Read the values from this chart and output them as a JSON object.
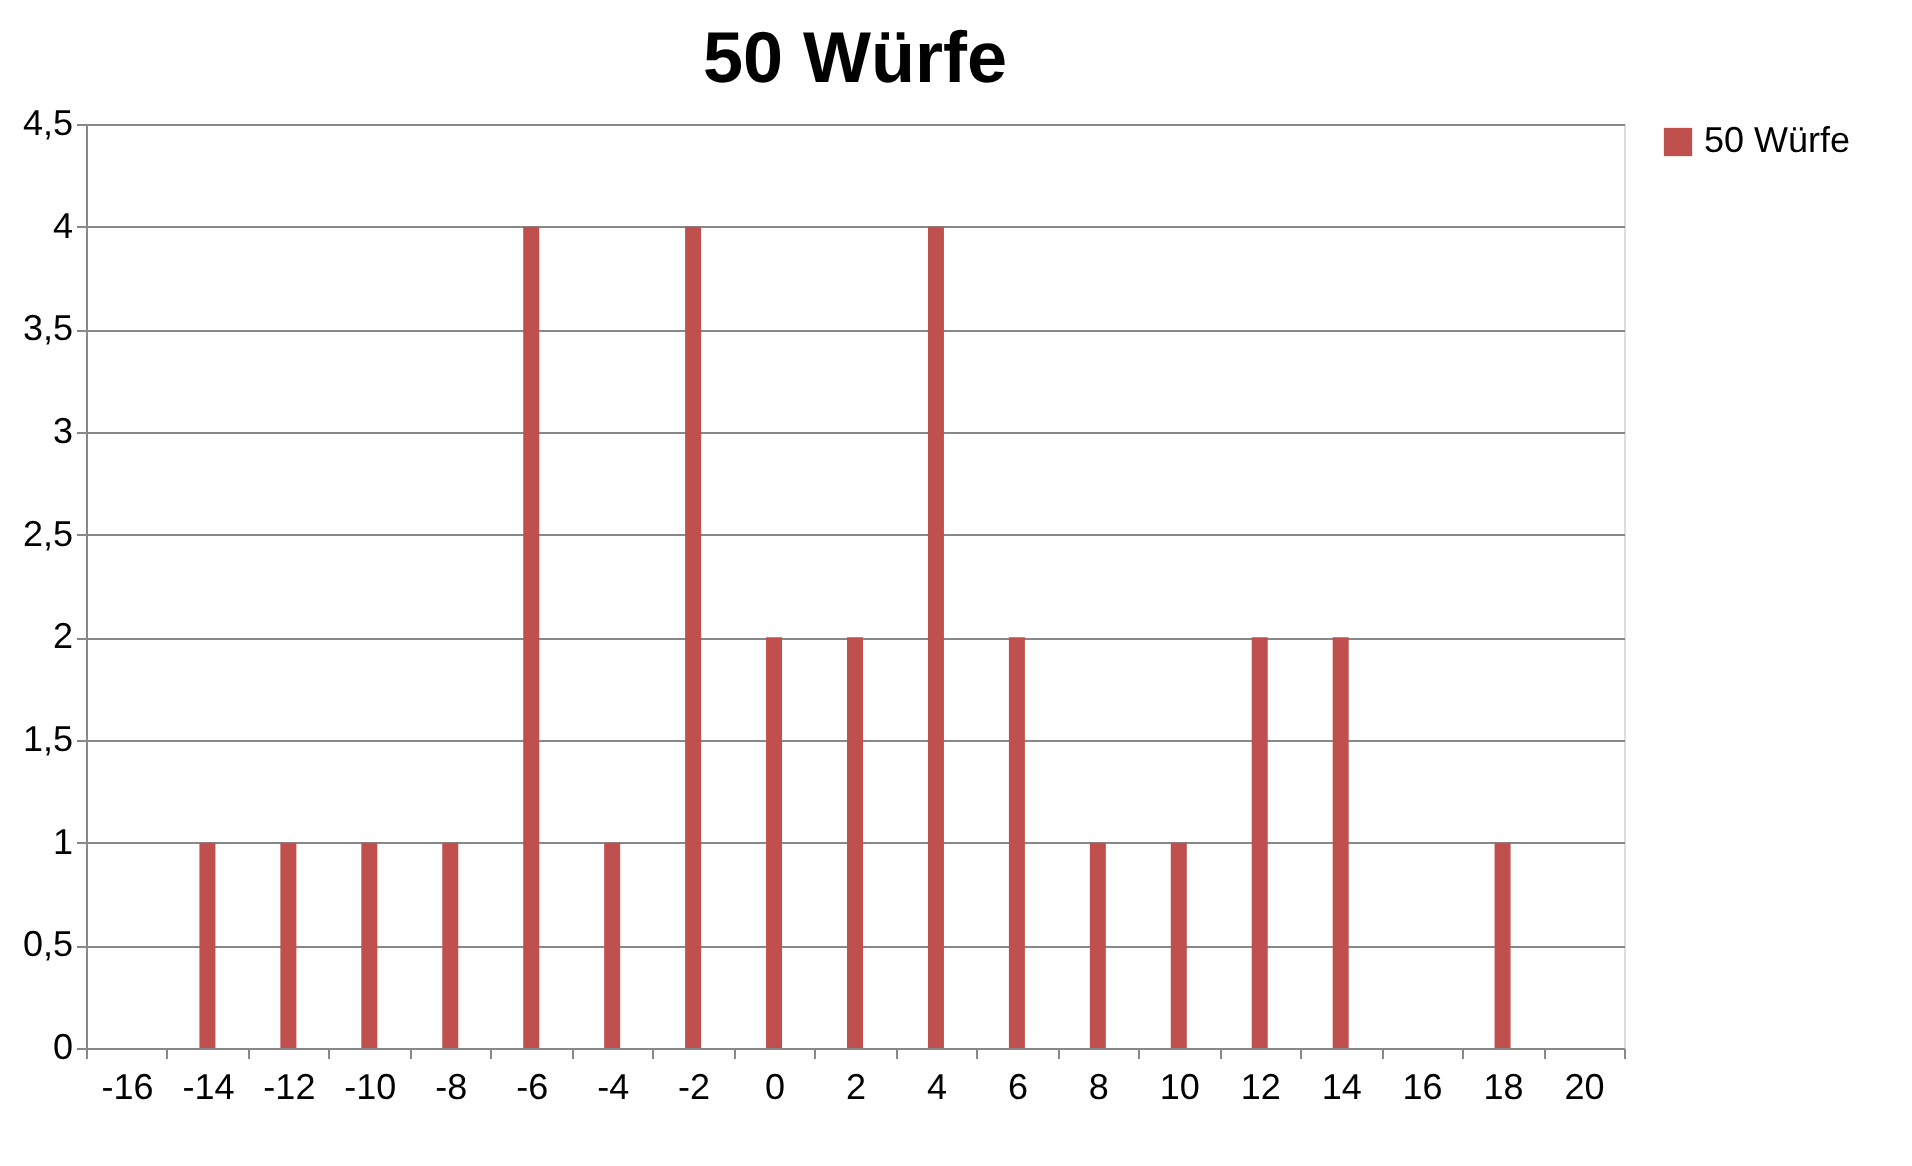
{
  "chart_data": {
    "type": "bar",
    "title": "50 Würfe",
    "categories": [
      "-16",
      "-14",
      "-12",
      "-10",
      "-8",
      "-6",
      "-4",
      "-2",
      "0",
      "2",
      "4",
      "6",
      "8",
      "10",
      "12",
      "14",
      "16",
      "18",
      "20"
    ],
    "series": [
      {
        "name": "50 Würfe",
        "color": "#c0504d",
        "values": [
          0,
          1,
          1,
          1,
          1,
          4,
          1,
          4,
          2,
          2,
          4,
          2,
          1,
          1,
          2,
          2,
          0,
          1,
          0
        ]
      }
    ],
    "ylim": [
      0,
      4.5
    ],
    "yticks": [
      0,
      {
        "value": 0.5,
        "label": "0,5"
      },
      1,
      {
        "value": 1.5,
        "label": "1,5"
      },
      2,
      {
        "value": 2.5,
        "label": "2,5"
      },
      3,
      {
        "value": 3.5,
        "label": "3,5"
      },
      4,
      {
        "value": 4.5,
        "label": "4,5"
      }
    ],
    "grid": "y",
    "legend": "right"
  }
}
